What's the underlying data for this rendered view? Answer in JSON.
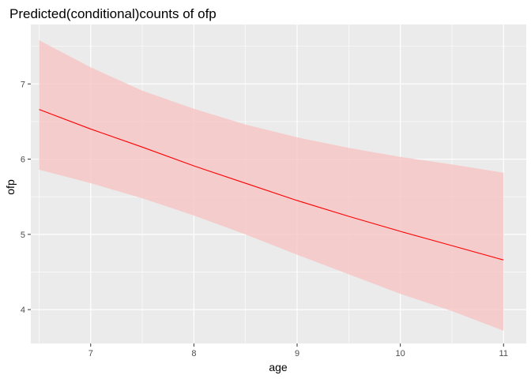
{
  "chart_data": {
    "type": "line",
    "title": "Predicted(conditional)counts of ofp",
    "xlabel": "age",
    "ylabel": "ofp",
    "xlim": [
      6.42,
      11.22
    ],
    "ylim": [
      3.55,
      7.79
    ],
    "x_ticks": [
      7,
      8,
      9,
      10,
      11
    ],
    "y_ticks": [
      4,
      5,
      6,
      7
    ],
    "x_tick_labels": [
      "7",
      "8",
      "9",
      "10",
      "11"
    ],
    "y_tick_labels": [
      "4",
      "5",
      "6",
      "7"
    ],
    "grid": true,
    "series": [
      {
        "x": [
          6.5,
          7,
          7.5,
          8,
          8.5,
          9,
          9.5,
          10,
          10.5,
          11
        ],
        "y": [
          6.66,
          6.4,
          6.16,
          5.91,
          5.68,
          5.45,
          5.24,
          5.04,
          4.85,
          4.66
        ],
        "ci_lower": [
          5.86,
          5.68,
          5.48,
          5.25,
          5.0,
          4.73,
          4.47,
          4.21,
          3.98,
          3.72
        ],
        "ci_upper": [
          7.58,
          7.22,
          6.91,
          6.67,
          6.46,
          6.29,
          6.15,
          6.03,
          5.93,
          5.82
        ]
      }
    ],
    "colors": {
      "line": "#ff0000",
      "ribbon": "#f8c4c4",
      "panel": "#ebebeb",
      "grid": "#ffffff"
    }
  }
}
